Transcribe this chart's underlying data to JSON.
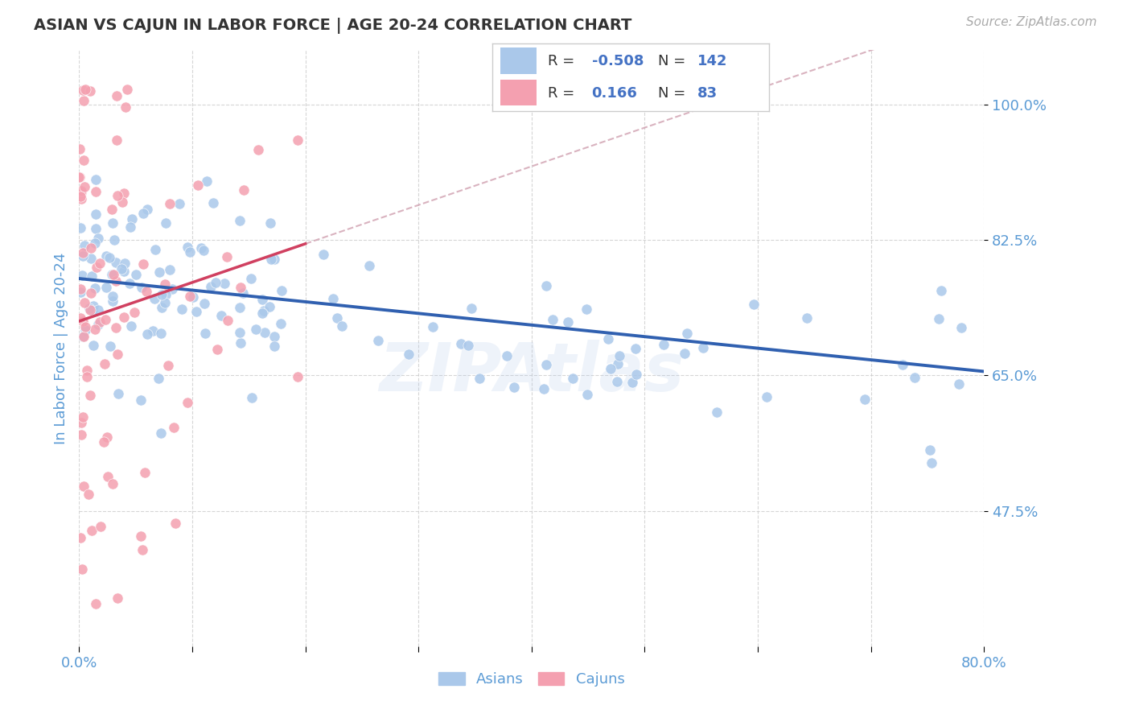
{
  "title": "ASIAN VS CAJUN IN LABOR FORCE | AGE 20-24 CORRELATION CHART",
  "source_text": "Source: ZipAtlas.com",
  "ylabel": "In Labor Force | Age 20-24",
  "xlim": [
    0.0,
    0.8
  ],
  "ylim": [
    0.3,
    1.07
  ],
  "yticks": [
    0.475,
    0.65,
    0.825,
    1.0
  ],
  "ytick_labels": [
    "47.5%",
    "65.0%",
    "82.5%",
    "100.0%"
  ],
  "xtick_vals": [
    0.0,
    0.1,
    0.2,
    0.3,
    0.4,
    0.5,
    0.6,
    0.7,
    0.8
  ],
  "xtick_labels": [
    "0.0%",
    "",
    "",
    "",
    "",
    "",
    "",
    "",
    "80.0%"
  ],
  "R_asian": -0.508,
  "N_asian": 142,
  "R_cajun": 0.166,
  "N_cajun": 83,
  "asian_color": "#aac8ea",
  "cajun_color": "#f4a0b0",
  "trend_asian_color": "#3060b0",
  "trend_cajun_color": "#d04060",
  "trend_cajun_dashed_color": "#d0a0b0",
  "watermark": "ZIPAtlas",
  "background_color": "#ffffff",
  "title_color": "#333333",
  "axis_label_color": "#5b9bd5",
  "tick_color": "#5b9bd5",
  "grid_color": "#cccccc",
  "legend_R_color": "#4472c4",
  "legend_N_color": "#4472c4",
  "legend_box_asian_color": "#aac8ea",
  "legend_box_cajun_color": "#f4a0b0"
}
